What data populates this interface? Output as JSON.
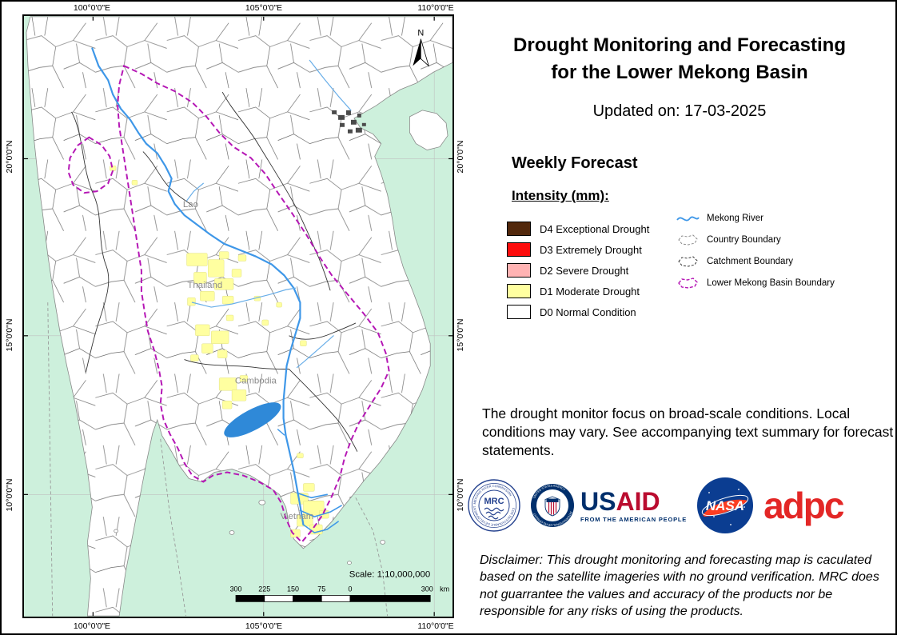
{
  "map": {
    "x_labels": [
      "100°0'0\"E",
      "105°0'0\"E",
      "110°0'0\"E"
    ],
    "y_labels": [
      "20°0'0\"N",
      "15°0'0\"N",
      "10°0'0\"N"
    ],
    "country_labels": [
      "Lao",
      "Thailand",
      "Cambodia",
      "Vietnam"
    ],
    "north_label": "N",
    "scale_text": "Scale: 1:10,000,000",
    "scale_ticks": [
      "300",
      "225",
      "150",
      "75",
      "0",
      "300"
    ],
    "scale_unit": "km",
    "colors": {
      "sea": "#cdf0dc",
      "land": "#ffffff",
      "river": "#3e97e8",
      "basin_boundary": "#b517b5",
      "drought_d1": "#ffffa0"
    },
    "drought_patches": [
      [
        205,
        298,
        26,
        16
      ],
      [
        232,
        306,
        20,
        22
      ],
      [
        214,
        322,
        16,
        14
      ],
      [
        240,
        330,
        24,
        14
      ],
      [
        222,
        346,
        18,
        12
      ],
      [
        250,
        352,
        14,
        10
      ],
      [
        206,
        354,
        10,
        10
      ],
      [
        262,
        318,
        12,
        10
      ],
      [
        270,
        300,
        10,
        8
      ],
      [
        246,
        296,
        12,
        9
      ],
      [
        216,
        388,
        18,
        14
      ],
      [
        236,
        396,
        22,
        16
      ],
      [
        224,
        412,
        14,
        12
      ],
      [
        244,
        420,
        12,
        10
      ],
      [
        210,
        426,
        10,
        8
      ],
      [
        246,
        455,
        22,
        16
      ],
      [
        262,
        470,
        18,
        14
      ],
      [
        250,
        484,
        12,
        10
      ],
      [
        272,
        452,
        10,
        8
      ],
      [
        336,
        600,
        22,
        14
      ],
      [
        352,
        610,
        26,
        18
      ],
      [
        344,
        628,
        20,
        14
      ],
      [
        360,
        640,
        16,
        12
      ],
      [
        336,
        646,
        12,
        10
      ],
      [
        372,
        622,
        12,
        10
      ],
      [
        352,
        588,
        14,
        10
      ],
      [
        300,
        382,
        8,
        7
      ],
      [
        318,
        360,
        7,
        6
      ],
      [
        348,
        408,
        8,
        7
      ],
      [
        108,
        188,
        8,
        6
      ],
      [
        136,
        206,
        7,
        6
      ],
      [
        290,
        352,
        8,
        6
      ],
      [
        255,
        376,
        9,
        7
      ],
      [
        344,
        550,
        8,
        6
      ]
    ]
  },
  "panel": {
    "title_line1": "Drought Monitoring and Forecasting",
    "title_line2": "for the Lower Mekong Basin",
    "updated": "Updated on: 17-03-2025",
    "forecast_heading": "Weekly Forecast",
    "intensity_heading": "Intensity (mm):",
    "drought_classes": [
      {
        "label": "D4 Exceptional Drought",
        "color": "#52280c"
      },
      {
        "label": "D3 Extremely Drought",
        "color": "#fd0d0d"
      },
      {
        "label": "D2 Severe Drought",
        "color": "#ffb3b3"
      },
      {
        "label": "D1 Moderate Drought",
        "color": "#ffffa0"
      },
      {
        "label": "D0 Normal Condition",
        "color": "#ffffff"
      }
    ],
    "line_legend": [
      {
        "label": "Mekong River"
      },
      {
        "label": "Country Boundary"
      },
      {
        "label": "Catchment Boundary"
      },
      {
        "label": "Lower Mekong Basin Boundary"
      }
    ],
    "note": "The drought monitor focus on broad-scale conditions. Local conditions may vary. See accompanying text summary for forecast statements.",
    "logos": {
      "mrc": {
        "abbr": "MRC",
        "ring_top": "MEKONG RIVER COMMISSION",
        "ring_bottom": "FOR SUSTAINABLE DEVELOPMENT"
      },
      "usaid": {
        "us": "US",
        "aid": "AID",
        "tagline": "FROM THE AMERICAN PEOPLE"
      },
      "nasa": {
        "text": "NASA"
      },
      "adpc": {
        "text": "adpc"
      }
    },
    "disclaimer": "Disclaimer: This drought monitoring and forecasting map is caculated based on the satellite imageries with no ground verification. MRC does not guarrantee the values and accuracy of the products nor be responsible for any risks of using the products."
  }
}
